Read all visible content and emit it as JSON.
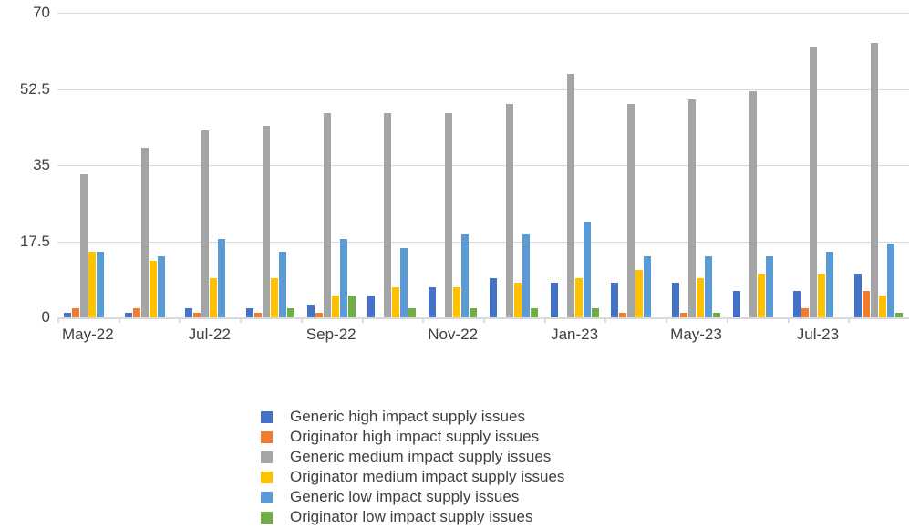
{
  "chart_data": {
    "type": "bar",
    "title": "",
    "xlabel": "",
    "ylabel": "",
    "grid": "horizontal",
    "legend_position": "bottom-center",
    "categories": [
      "May-22",
      "",
      "Jul-22",
      "",
      "Sep-22",
      "",
      "Nov-22",
      "",
      "Jan-23",
      "",
      "May-23",
      "",
      "Jul-23",
      ""
    ],
    "visible_x_tick_labels": [
      "May-22",
      "Jul-22",
      "Sep-22",
      "Nov-22",
      "Jan-23",
      "May-23",
      "Jul-23"
    ],
    "y_axis": {
      "min": 0,
      "max": 70,
      "ticks": [
        {
          "value": 0,
          "label": "0"
        },
        {
          "value": 17.5,
          "label": "17.5"
        },
        {
          "value": 35,
          "label": "35"
        },
        {
          "value": 52.5,
          "label": "52.5"
        },
        {
          "value": 70,
          "label": "70"
        }
      ]
    },
    "series": [
      {
        "name": "Generic high impact supply issues",
        "color": "#4472C4",
        "values": [
          1,
          1,
          2,
          2,
          3,
          5,
          7,
          9,
          8,
          8,
          8,
          6,
          6,
          10
        ]
      },
      {
        "name": "Originator high impact supply issues",
        "color": "#ED7D31",
        "values": [
          2,
          2,
          1,
          1,
          1,
          0,
          0,
          0,
          0,
          1,
          1,
          0,
          2,
          6
        ]
      },
      {
        "name": "Generic medium impact supply issues",
        "color": "#A5A5A5",
        "values": [
          33,
          39,
          43,
          44,
          47,
          47,
          47,
          49,
          56,
          49,
          50,
          52,
          62,
          63
        ]
      },
      {
        "name": "Originator medium impact supply issues",
        "color": "#FFC000",
        "values": [
          15,
          13,
          9,
          9,
          5,
          7,
          7,
          8,
          9,
          11,
          9,
          10,
          10,
          5
        ]
      },
      {
        "name": "Generic low impact supply issues",
        "color": "#5B9BD5",
        "values": [
          15,
          14,
          18,
          15,
          18,
          16,
          19,
          19,
          22,
          14,
          14,
          14,
          15,
          17
        ]
      },
      {
        "name": "Originator low impact supply issues",
        "color": "#70AD47",
        "values": [
          0,
          0,
          0,
          2,
          5,
          2,
          2,
          2,
          2,
          0,
          1,
          0,
          0,
          1
        ]
      }
    ]
  },
  "colors": {
    "background": "#FFFFFF",
    "gridline": "#D9D9D9",
    "axis_text": "#404040"
  }
}
